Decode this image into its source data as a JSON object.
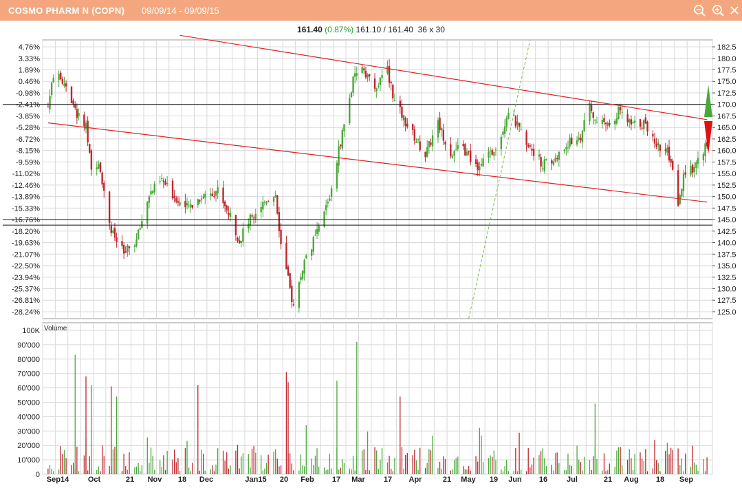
{
  "window": {
    "title": "COSMO PHARM N (COPN)",
    "date_range": "09/09/14 - 09/09/15",
    "icons": [
      "zoom-out-icon",
      "zoom-in-icon",
      "close-icon"
    ]
  },
  "quote": {
    "last": "161.40",
    "change": "(0.87%)",
    "bid_ask": "161.10 / 161.40",
    "size": "36 x 30"
  },
  "colors": {
    "up": "#4aa83a",
    "down": "#c0262c",
    "trendline": "#e02020",
    "fan_line": "#7ab84a",
    "grid": "#d8d8d8"
  },
  "chart_data": [
    {
      "type": "candlestick",
      "title": "",
      "y_axis_right": {
        "range": [
          123.5,
          184.0
        ],
        "ticks": [
          "182.5",
          "180.0",
          "177.5",
          "175.0",
          "172.5",
          "170.0",
          "167.5",
          "165.0",
          "162.5",
          "160.0",
          "157.5",
          "155.0",
          "152.5",
          "150.0",
          "147.5",
          "145.0",
          "142.5",
          "140.0",
          "137.5",
          "135.0",
          "132.5",
          "130.0",
          "127.5",
          "125.0"
        ]
      },
      "y_axis_left": {
        "unit": "percent",
        "ticks": [
          "4.76%",
          "3.33%",
          "1.89%",
          "0.46%",
          "-0.98%",
          "-2.41%",
          "-3.85%",
          "-5.28%",
          "-6.72%",
          "-8.15%",
          "-9.59%",
          "-11.02%",
          "-12.46%",
          "-13.89%",
          "-15.33%",
          "-16.76%",
          "-18.20%",
          "-19.63%",
          "-21.07%",
          "-22.50%",
          "-23.94%",
          "-25.37%",
          "-26.81%",
          "-28.24%"
        ]
      },
      "x_axis": {
        "ticks": [
          "Sep14",
          "Oct",
          "21",
          "Nov",
          "18",
          "Dec",
          "Jan15",
          "20",
          "Feb",
          "17",
          "Mar",
          "17",
          "Apr",
          "21",
          "May",
          "19",
          "Jun",
          "16",
          "Jul",
          "21",
          "Aug",
          "18",
          "Sep"
        ]
      },
      "horizontal_lines": [
        170.0,
        145.0,
        143.8
      ],
      "trendlines": [
        {
          "from": {
            "date": "2014-11-21",
            "price": 185.0
          },
          "to": {
            "date": "2015-09-09",
            "price": 166.7
          }
        },
        {
          "from": {
            "date": "2014-09-09",
            "price": 166.0
          },
          "to": {
            "date": "2015-09-09",
            "price": 148.8
          }
        }
      ],
      "fan_line": {
        "from": {
          "date": "2015-04-30",
          "price": 123.5
        },
        "to": {
          "date": "2015-06-03",
          "price": 184.0
        }
      },
      "price_path": [
        {
          "date": "2014-09-09",
          "price": 169.5
        },
        {
          "date": "2014-09-12",
          "price": 176.5
        },
        {
          "date": "2014-09-19",
          "price": 174.5
        },
        {
          "date": "2014-09-24",
          "price": 168.5
        },
        {
          "date": "2014-09-30",
          "price": 165.0
        },
        {
          "date": "2014-10-03",
          "price": 155.5
        },
        {
          "date": "2014-10-07",
          "price": 158.0
        },
        {
          "date": "2014-10-14",
          "price": 142.5
        },
        {
          "date": "2014-10-21",
          "price": 137.5
        },
        {
          "date": "2014-10-28",
          "price": 140.5
        },
        {
          "date": "2014-11-04",
          "price": 150.5
        },
        {
          "date": "2014-11-11",
          "price": 153.5
        },
        {
          "date": "2014-11-18",
          "price": 150.0
        },
        {
          "date": "2014-11-25",
          "price": 147.5
        },
        {
          "date": "2014-12-03",
          "price": 150.0
        },
        {
          "date": "2014-12-12",
          "price": 151.5
        },
        {
          "date": "2014-12-18",
          "price": 146.5
        },
        {
          "date": "2014-12-24",
          "price": 140.5
        },
        {
          "date": "2014-12-31",
          "price": 146.0
        },
        {
          "date": "2015-01-08",
          "price": 149.5
        },
        {
          "date": "2015-01-13",
          "price": 150.5
        },
        {
          "date": "2015-01-16",
          "price": 139.5
        },
        {
          "date": "2015-01-23",
          "price": 126.0
        },
        {
          "date": "2015-01-29",
          "price": 136.0
        },
        {
          "date": "2015-02-05",
          "price": 142.0
        },
        {
          "date": "2015-02-12",
          "price": 150.0
        },
        {
          "date": "2015-02-18",
          "price": 162.0
        },
        {
          "date": "2015-02-25",
          "price": 175.0
        },
        {
          "date": "2015-03-02",
          "price": 178.5
        },
        {
          "date": "2015-03-09",
          "price": 173.0
        },
        {
          "date": "2015-03-16",
          "price": 177.5
        },
        {
          "date": "2015-03-20",
          "price": 170.5
        },
        {
          "date": "2015-03-27",
          "price": 165.5
        },
        {
          "date": "2015-04-06",
          "price": 159.0
        },
        {
          "date": "2015-04-13",
          "price": 166.0
        },
        {
          "date": "2015-04-20",
          "price": 159.5
        },
        {
          "date": "2015-04-27",
          "price": 160.5
        },
        {
          "date": "2015-05-04",
          "price": 156.5
        },
        {
          "date": "2015-05-12",
          "price": 159.0
        },
        {
          "date": "2015-05-18",
          "price": 163.5
        },
        {
          "date": "2015-05-22",
          "price": 169.0
        },
        {
          "date": "2015-05-28",
          "price": 164.5
        },
        {
          "date": "2015-06-03",
          "price": 161.0
        },
        {
          "date": "2015-06-10",
          "price": 157.0
        },
        {
          "date": "2015-06-17",
          "price": 158.0
        },
        {
          "date": "2015-06-24",
          "price": 161.5
        },
        {
          "date": "2015-07-01",
          "price": 163.0
        },
        {
          "date": "2015-07-06",
          "price": 169.5
        },
        {
          "date": "2015-07-10",
          "price": 165.5
        },
        {
          "date": "2015-07-17",
          "price": 166.0
        },
        {
          "date": "2015-07-22",
          "price": 168.5
        },
        {
          "date": "2015-07-29",
          "price": 165.5
        },
        {
          "date": "2015-08-05",
          "price": 166.0
        },
        {
          "date": "2015-08-12",
          "price": 161.5
        },
        {
          "date": "2015-08-18",
          "price": 159.5
        },
        {
          "date": "2015-08-21",
          "price": 155.0
        },
        {
          "date": "2015-08-24",
          "price": 147.5
        },
        {
          "date": "2015-08-27",
          "price": 154.0
        },
        {
          "date": "2015-09-03",
          "price": 157.0
        },
        {
          "date": "2015-09-09",
          "price": 161.4
        }
      ]
    },
    {
      "type": "bar",
      "title": "Volume",
      "y_axis": {
        "range": [
          0,
          100000
        ],
        "ticks": [
          "100K",
          "90'000",
          "80'000",
          "70'000",
          "60'000",
          "50'000",
          "40'000",
          "30'000",
          "20'000",
          "10'000",
          "0"
        ]
      },
      "peaks": [
        {
          "date": "2014-09-24",
          "value": 83000,
          "color": "up"
        },
        {
          "date": "2014-09-30",
          "value": 68000,
          "color": "down"
        },
        {
          "date": "2014-10-03",
          "value": 62000,
          "color": "up"
        },
        {
          "date": "2014-10-14",
          "value": 61000,
          "color": "down"
        },
        {
          "date": "2014-10-17",
          "value": 54000,
          "color": "up"
        },
        {
          "date": "2014-12-01",
          "value": 62000,
          "color": "down"
        },
        {
          "date": "2015-01-19",
          "value": 71000,
          "color": "down"
        },
        {
          "date": "2015-01-20",
          "value": 64000,
          "color": "down"
        },
        {
          "date": "2015-02-16",
          "value": 65000,
          "color": "up"
        },
        {
          "date": "2015-02-27",
          "value": 92000,
          "color": "up"
        },
        {
          "date": "2015-03-23",
          "value": 54000,
          "color": "down"
        },
        {
          "date": "2015-07-09",
          "value": 49000,
          "color": "up"
        }
      ],
      "baseline_range": [
        2000,
        20000
      ]
    }
  ]
}
